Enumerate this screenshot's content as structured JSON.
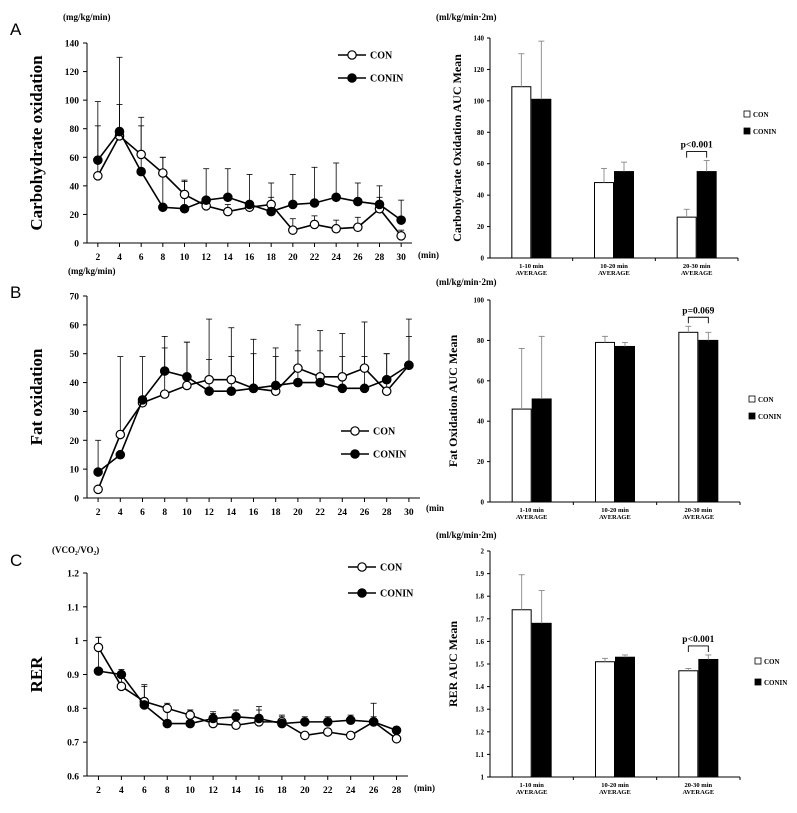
{
  "panels": [
    {
      "letter": "A",
      "line": {
        "ylabel": "Carbohydrate oxidation",
        "unit": "(mg/kg/min)",
        "xunit": "(min)",
        "ylim": [
          0,
          140
        ],
        "yticks": [
          0,
          20,
          40,
          60,
          80,
          100,
          120,
          140
        ],
        "ytick_labels": [
          "0",
          "20",
          "40",
          "60",
          "80",
          "100",
          "120",
          "140"
        ],
        "x": [
          2,
          4,
          6,
          8,
          10,
          12,
          14,
          16,
          18,
          20,
          22,
          24,
          26,
          28,
          30
        ],
        "series": [
          {
            "name": "CON",
            "marker": "open",
            "values": [
              47,
              75,
              62,
              49,
              34,
              26,
              22,
              25,
              27,
              9,
              13,
              10,
              11,
              24,
              5
            ],
            "err": [
              52,
              22,
              20,
              11,
              9,
              5,
              5,
              4,
              5,
              8,
              6,
              6,
              7,
              8,
              4
            ]
          },
          {
            "name": "CONIN",
            "marker": "filled",
            "values": [
              58,
              78,
              50,
              25,
              24,
              30,
              32,
              27,
              22,
              27,
              28,
              32,
              29,
              27,
              16
            ],
            "err": [
              24,
              52,
              38,
              35,
              20,
              22,
              20,
              21,
              20,
              21,
              25,
              24,
              13,
              13,
              14
            ]
          }
        ]
      },
      "bar": {
        "ylabel": "Carbohydrate Oxidation AUC Mean",
        "unit": "(ml/kg/min·2m)",
        "ylim": [
          0,
          140
        ],
        "yticks": [
          0,
          20,
          40,
          60,
          80,
          100,
          120,
          140
        ],
        "ytick_labels": [
          "0",
          "20",
          "40",
          "60",
          "80",
          "100",
          "120",
          "140"
        ],
        "categories": [
          [
            "1-10 min",
            "AVERAGE"
          ],
          [
            "10-20 min",
            "AVERAGE"
          ],
          [
            "20-30 min",
            "AVERAGE"
          ]
        ],
        "series": [
          {
            "name": "CON",
            "fill": "open",
            "values": [
              109,
              48,
              26
            ],
            "err": [
              21,
              9,
              5
            ]
          },
          {
            "name": "CONIN",
            "fill": "filled",
            "values": [
              101,
              55,
              55
            ],
            "err": [
              37,
              6,
              7
            ]
          }
        ],
        "annotation": "p<0.001"
      }
    },
    {
      "letter": "B",
      "line": {
        "ylabel": "Fat oxidation",
        "unit": "(mg/kg/min)",
        "xunit": "(min",
        "ylim": [
          0,
          70
        ],
        "yticks": [
          0,
          10,
          20,
          30,
          40,
          50,
          60,
          70
        ],
        "ytick_labels": [
          "0",
          "10",
          "20",
          "30",
          "40",
          "50",
          "60",
          "70"
        ],
        "x": [
          2,
          4,
          6,
          8,
          10,
          12,
          14,
          16,
          18,
          20,
          22,
          24,
          26,
          28,
          30
        ],
        "series": [
          {
            "name": "CON",
            "marker": "open",
            "values": [
              3,
              22,
              33,
              36,
              39,
              41,
              41,
              38,
              37,
              45,
              42,
              42,
              45,
              37,
              46
            ],
            "err": [
              0,
              27,
              16,
              16,
              15,
              21,
              18,
              17,
              15,
              15,
              16,
              15,
              16,
              13,
              16
            ]
          },
          {
            "name": "CONIN",
            "marker": "filled",
            "values": [
              9,
              15,
              34,
              44,
              42,
              37,
              37,
              38,
              39,
              40,
              40,
              38,
              38,
              41,
              46
            ],
            "err": [
              11,
              0,
              0,
              12,
              12,
              11,
              12,
              12,
              10,
              11,
              11,
              11,
              11,
              9,
              10
            ]
          }
        ]
      },
      "bar": {
        "ylabel": "Fat Oxidation AUC Mean",
        "unit": "(ml/kg/min·2m)",
        "ylim": [
          0,
          100
        ],
        "yticks": [
          0,
          20,
          40,
          60,
          80,
          100
        ],
        "ytick_labels": [
          "0",
          "20",
          "40",
          "60",
          "80",
          "100"
        ],
        "categories": [
          [
            "1-10 min",
            "AVERAGE"
          ],
          [
            "10-20 min",
            "AVERAGE"
          ],
          [
            "20-30 min",
            "AVERAGE"
          ]
        ],
        "series": [
          {
            "name": "CON",
            "fill": "open",
            "values": [
              46,
              79,
              84
            ],
            "err": [
              30,
              3,
              3
            ]
          },
          {
            "name": "CONIN",
            "fill": "filled",
            "values": [
              51,
              77,
              80
            ],
            "err": [
              31,
              2,
              4
            ]
          }
        ],
        "annotation": "p=0.069"
      }
    },
    {
      "letter": "C",
      "line": {
        "ylabel": "RER",
        "unit": "(VCO₂/VO₂)",
        "xunit": "(min)",
        "ylim": [
          0.6,
          1.2
        ],
        "yticks": [
          0.6,
          0.7,
          0.8,
          0.9,
          1.0,
          1.1,
          1.2
        ],
        "ytick_labels": [
          "0.6",
          "0.7",
          "0.8",
          "0.9",
          "1",
          "1.1",
          "1.2"
        ],
        "x": [
          2,
          4,
          6,
          8,
          10,
          12,
          14,
          16,
          18,
          20,
          22,
          24,
          26,
          28
        ],
        "series": [
          {
            "name": "CON",
            "marker": "open",
            "values": [
              0.98,
              0.865,
              0.82,
              0.8,
              0.78,
              0.755,
              0.75,
              0.76,
              0.76,
              0.72,
              0.73,
              0.72,
              0.76,
              0.71
            ],
            "err": [
              0.03,
              0.04,
              0.045,
              0.01,
              0.015,
              0.03,
              0.015,
              0.045,
              0.02,
              0.01,
              0.01,
              0.01,
              0.055,
              0.01
            ]
          },
          {
            "name": "CONIN",
            "marker": "filled",
            "values": [
              0.91,
              0.9,
              0.81,
              0.755,
              0.755,
              0.77,
              0.775,
              0.77,
              0.755,
              0.76,
              0.76,
              0.765,
              0.76,
              0.735
            ],
            "err": [
              0.1,
              0.015,
              0.06,
              0.06,
              0.04,
              0.02,
              0.02,
              0.025,
              0.02,
              0.015,
              0.015,
              0.015,
              0.015,
              0.01
            ]
          }
        ]
      },
      "bar": {
        "ylabel": "RER AUC Mean",
        "unit": "(ml/kg/min·2m)",
        "ylim": [
          1,
          2
        ],
        "yticks": [
          1,
          1.1,
          1.2,
          1.3,
          1.4,
          1.5,
          1.6,
          1.7,
          1.8,
          1.9,
          2
        ],
        "ytick_labels": [
          "1",
          "1.1",
          "1.2",
          "1.3",
          "1.4",
          "1.5",
          "1.6",
          "1.7",
          "1.8",
          "1.9",
          "2"
        ],
        "categories": [
          [
            "1-10 min",
            "AVERAGE"
          ],
          [
            "10-20 min",
            "AVERAGE"
          ],
          [
            "20-30 min",
            "AVERAGE"
          ]
        ],
        "series": [
          {
            "name": "CON",
            "fill": "open",
            "values": [
              1.74,
              1.51,
              1.47
            ],
            "err": [
              0.155,
              0.015,
              0.01
            ]
          },
          {
            "name": "CONIN",
            "fill": "filled",
            "values": [
              1.68,
              1.53,
              1.52
            ],
            "err": [
              0.145,
              0.01,
              0.02
            ]
          }
        ],
        "annotation": "p<0.001"
      }
    }
  ]
}
